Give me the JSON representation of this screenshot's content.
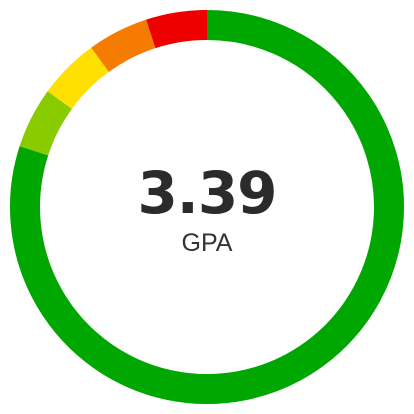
{
  "chart_data": {
    "type": "pie",
    "value": "3.39",
    "label": "GPA",
    "segments": [
      {
        "color": "#00a700",
        "fraction": 0.8
      },
      {
        "color": "#88cc00",
        "fraction": 0.05
      },
      {
        "color": "#ffe000",
        "fraction": 0.05
      },
      {
        "color": "#f57c00",
        "fraction": 0.05
      },
      {
        "color": "#ee0000",
        "fraction": 0.05
      }
    ]
  }
}
